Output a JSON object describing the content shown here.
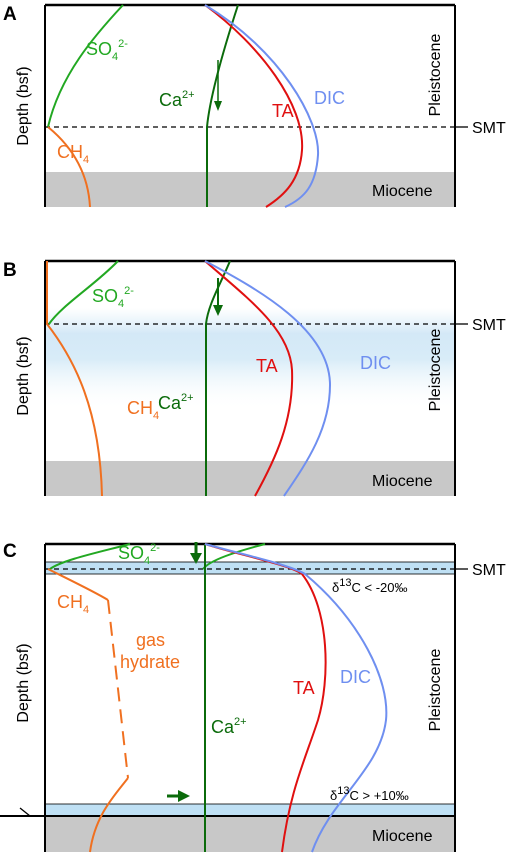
{
  "panels": [
    {
      "letter": "A",
      "ylabel": "Depth (bsf)",
      "epoch_upper": "Pleistocene",
      "epoch_lower": "Miocene",
      "smt_label": "SMT",
      "species": {
        "so4": {
          "main": "SO",
          "sub": "4",
          "sup": "2-"
        },
        "ch4": {
          "main": "CH",
          "sub": "4"
        },
        "ca": {
          "main": "Ca",
          "sup": "2+"
        },
        "ta": "TA",
        "dic": "DIC"
      }
    },
    {
      "letter": "B",
      "ylabel": "Depth (bsf)",
      "epoch_upper": "Pleistocene",
      "epoch_lower": "Miocene",
      "smt_label": "SMT",
      "species": {
        "so4": {
          "main": "SO",
          "sub": "4",
          "sup": "2-"
        },
        "ch4": {
          "main": "CH",
          "sub": "4"
        },
        "ca": {
          "main": "Ca",
          "sup": "2+"
        },
        "ta": "TA",
        "dic": "DIC"
      }
    },
    {
      "letter": "C",
      "ylabel": "Depth (bsf)",
      "epoch_upper": "Pleistocene",
      "epoch_lower": "Miocene",
      "smt_label": "SMT",
      "species": {
        "so4": {
          "main": "SO",
          "sub": "4",
          "sup": "2-"
        },
        "ch4": {
          "main": "CH",
          "sub": "4"
        },
        "ca": {
          "main": "Ca",
          "sup": "2+"
        },
        "ta": "TA",
        "dic": "DIC"
      },
      "gas_hydrate": [
        "gas",
        "hydrate"
      ],
      "delta_upper": {
        "pre": "δ",
        "sup": "13",
        "post": "C < -20‰"
      },
      "delta_lower": {
        "pre": "δ",
        "sup": "13",
        "post": "C > +10‰"
      }
    }
  ],
  "colors": {
    "so4": "#22a822",
    "ch4": "#f07020",
    "ca": "#0b6b0b",
    "ta": "#e01010",
    "dic": "#6f8ff0",
    "miocene": "#c8c8c8",
    "blue_band": "#bfe0f4"
  }
}
